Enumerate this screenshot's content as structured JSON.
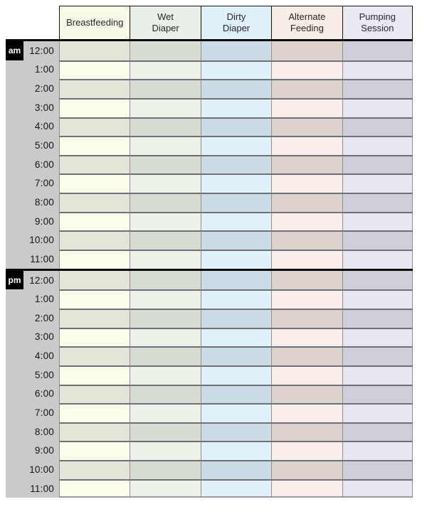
{
  "table": {
    "columns": [
      {
        "label": "Breastfeeding",
        "header_bg": "#fafae9",
        "row_light": "#fdfdec",
        "row_dark": "#e5e4d9"
      },
      {
        "label": "Wet\nDiaper",
        "header_bg": "#eaf0e7",
        "row_light": "#edf2e9",
        "row_dark": "#d8ddd3"
      },
      {
        "label": "Dirty\nDiaper",
        "header_bg": "#e0f0f9",
        "row_light": "#e1f1fa",
        "row_dark": "#cbdce7"
      },
      {
        "label": "Alternate\nFeeding",
        "header_bg": "#f8ece6",
        "row_light": "#faeeea",
        "row_dark": "#ded2cd"
      },
      {
        "label": "Pumping\nSession",
        "header_bg": "#eaeaf2",
        "row_light": "#e7e7f1",
        "row_dark": "#cfced9"
      }
    ],
    "sections": [
      {
        "meridiem": "am",
        "times": [
          "12:00",
          "1:00",
          "2:00",
          "3:00",
          "4:00",
          "5:00",
          "6:00",
          "7:00",
          "8:00",
          "9:00",
          "10:00",
          "11:00"
        ]
      },
      {
        "meridiem": "pm",
        "times": [
          "12:00",
          "1:00",
          "2:00",
          "3:00",
          "4:00",
          "5:00",
          "6:00",
          "7:00",
          "8:00",
          "9:00",
          "10:00",
          "11:00"
        ]
      }
    ],
    "colors": {
      "time_column_bg": "#cacaca",
      "meridiem_bg": "#000000",
      "meridiem_text": "#ffffff",
      "section_divider": "#0a0a0a",
      "row_divider": "#6f6f76",
      "column_divider": "#8d8d93",
      "header_border": "#111111",
      "header_text": "#26262b",
      "time_text": "#141414"
    }
  }
}
